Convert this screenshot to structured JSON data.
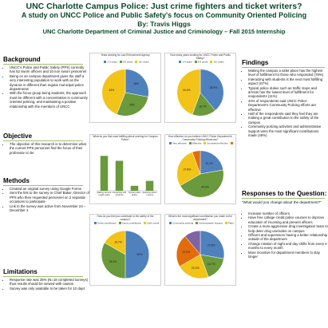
{
  "header": {
    "title": "UNC Charlotte Campus Police: Just crime fighters and ticket writers?",
    "subtitle": "A study on UNCC Police and Public Safety's focus on Community Oriented Policing",
    "author": "By: Travis Higgs",
    "department": "UNC Charlotte Department of Criminal Justice and Criminology – Fall 2015 Internship"
  },
  "background": {
    "title": "Background",
    "items": [
      "UNCC's Police and Public Safety (PPS) currently has 52 sworn officers and 10 non sworn personnel",
      "Being on an campus department gives the staff a very interesting population to work with as the dynamic is different than regular municipal police departments",
      "With the focus group being students, the approach must be different with a concentration in community oriented policing, and maintaining a positive relationship with the members of UNCC"
    ]
  },
  "objective": {
    "title": "Objective",
    "items": [
      "The objective of this research is to determine what the current PPS personnel find the focus of their profession to be"
    ]
  },
  "methods": {
    "title": "Methods",
    "items": [
      "Created an original survey using Google Forms",
      "Sent the link to the survey to Chief Baker, Director of PPS who then requested personnel on 2 separate occasions to participate",
      "Link to the survey was active from November 24 – December 2"
    ]
  },
  "limitations": {
    "title": "Limitations",
    "items": [
      "Response rate was 35% (N=18 completed surveys) thus results should be viewed with caution",
      "Survey was only available to be taken for 10 days"
    ]
  },
  "findings": {
    "title": "Findings",
    "items": [
      "Making the campus a safer place has the highest level of fulfillment for those who responded (78%)",
      "Interacting with students is the next most fulfilling aspect (67%)",
      "Typical police duties such as traffic stops and arrests has the lowest level of fulfillment for respondents (11%)",
      "44% of respondents said UNCC Police Department's Community Policing efforts are effective",
      "Half of the respondents said they feel they are making a great contribution to the safety of the campus",
      "Community policing activities and administrative support were the most significant contributions made (45%)"
    ]
  },
  "responses": {
    "title": "Responses to the Question:",
    "question": "\"What would you change about the department?\"",
    "items": [
      "Increase number of officers",
      "Have free college credit police courses to improve education of incoming and present officers",
      "Create a more aggressive drug investigation team to help deter drug use/sales on campus",
      "Officers and supervisors having a better relationship outside of the department",
      "Change rotation of night and day shifts from every 6 months to every month",
      "More incentive for department members to stay longer"
    ]
  },
  "colors": {
    "blue": "#4f81bd",
    "green": "#6a9a3c",
    "yellow": "#f2c318",
    "orange": "#e36c0a",
    "red": "#c0392b",
    "purple": "#8064a2",
    "heading": "#0b4a2a"
  },
  "chart_data": [
    {
      "type": "pie",
      "title": "Years working for Law Enforcement Agency",
      "categories": [
        "1-4 years",
        "5-9 years",
        "10+ years"
      ],
      "values": [
        28,
        28,
        44
      ],
      "labels": [
        "28%",
        "28%",
        "44%"
      ]
    },
    {
      "type": "pie",
      "title": "How many years working for UNCC Police and Public Safety?",
      "categories": [
        "1-4 years",
        "5-9 years",
        "10+ years"
      ],
      "values": [
        38.9,
        16.7,
        44.4
      ],
      "labels": [
        "38.9%",
        "16.7%",
        "44.4%"
      ]
    },
    {
      "type": "bar",
      "title": "What do you find most fulfilling about working for Campus Police?",
      "categories": [
        "Making campus a safer place",
        "Interacting with students",
        "Typical police duties",
        "Assisting others / events"
      ],
      "values": [
        78,
        67,
        11,
        22
      ],
      "ylim": [
        0,
        100
      ]
    },
    {
      "type": "pie",
      "title": "How effective do you believe UNCC Police Department's Community Policing efforts are?",
      "categories": [
        "Very effective",
        "Effective",
        "Somewhat effective",
        "Not effective"
      ],
      "values": [
        22.2,
        44.4,
        27.8,
        5.6
      ],
      "labels": [
        "22.2%",
        "44.4%",
        "27.8%",
        ""
      ]
    },
    {
      "type": "pie",
      "title": "How do you feel you contribute to the safety of the campus?",
      "categories": [
        "Great contribution",
        "Some contribution",
        "Little contribution"
      ],
      "values": [
        50,
        33.3,
        16.7
      ],
      "labels": [
        "50%",
        "33.3%",
        "16.7%"
      ]
    },
    {
      "type": "pie",
      "title": "What is the most significant contribution you make to the department?",
      "categories": [
        "Community policing",
        "Administrative support",
        "Patrol",
        "Investigations",
        "Other"
      ],
      "values": [
        27.8,
        16.7,
        22.2,
        22.2,
        11.1
      ],
      "labels": [
        "27.8%",
        "16.7%",
        "22.2%",
        "22.2%",
        ""
      ]
    }
  ]
}
